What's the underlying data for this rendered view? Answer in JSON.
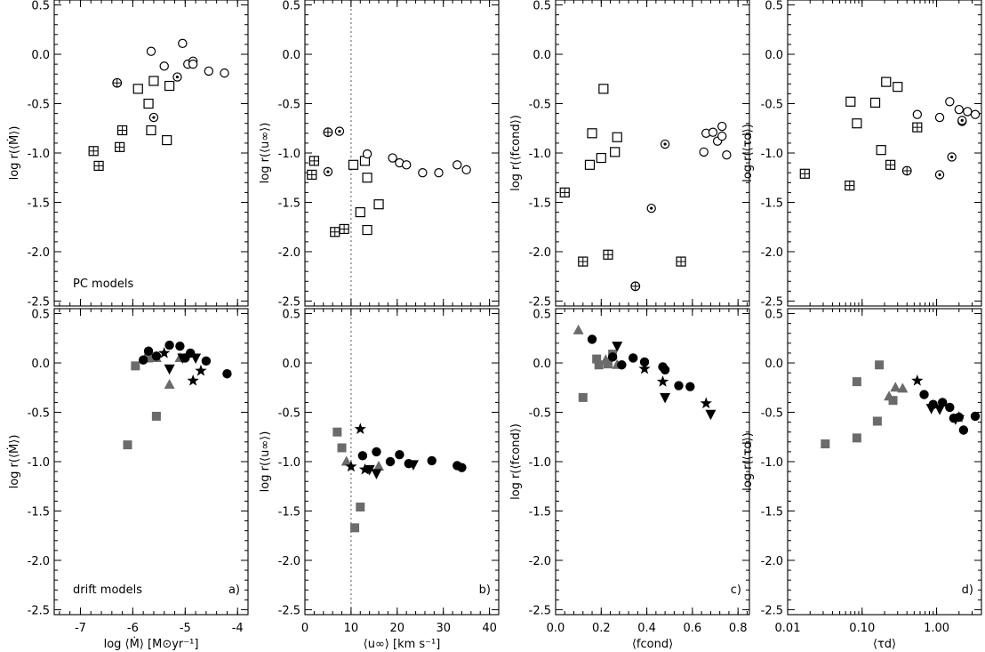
{
  "colors": {
    "black": "#000000",
    "gray": "#6b6b6b"
  },
  "columns": [
    {
      "id": "a",
      "xscale": "linear",
      "xlim": [
        -7.5,
        -3.8
      ],
      "xticks": [
        -7,
        -6,
        -5,
        -4
      ],
      "xtick_labels": [
        "-7",
        "-6",
        "-5",
        "-4"
      ],
      "xlabel": "log ⟨Ṁ⟩ [M⊙yr⁻¹]",
      "panel_label": "a)",
      "ylabel_top": "log r(⟨Ṁ⟩)",
      "ylabel_bottom": "log r(⟨Ṁ⟩)",
      "vline": null
    },
    {
      "id": "b",
      "xscale": "linear",
      "xlim": [
        0,
        42
      ],
      "xticks": [
        0,
        10,
        20,
        30,
        40
      ],
      "xtick_labels": [
        "0",
        "10",
        "20",
        "30",
        "40"
      ],
      "xlabel": "⟨u∞⟩ [km s⁻¹]",
      "panel_label": "b)",
      "ylabel_top": "log r(⟨u∞⟩)",
      "ylabel_bottom": "log r(⟨u∞⟩)",
      "vline": 10
    },
    {
      "id": "c",
      "xscale": "linear",
      "xlim": [
        0,
        0.85
      ],
      "xticks": [
        0,
        0.2,
        0.4,
        0.6,
        0.8
      ],
      "xtick_labels": [
        "0.0",
        "0.2",
        "0.4",
        "0.6",
        "0.8"
      ],
      "xlabel": "⟨fcond⟩",
      "panel_label": "c)",
      "ylabel_top": "log r(⟨fcond⟩)",
      "ylabel_bottom": "log r(⟨fcond⟩)",
      "vline": null
    },
    {
      "id": "d",
      "xscale": "log",
      "xlim": [
        0.01,
        4
      ],
      "xticks": [
        0.01,
        0.1,
        1
      ],
      "xtick_labels": [
        "0.01",
        "0.10",
        "1.00"
      ],
      "xlabel": "⟨τd⟩",
      "panel_label": "d)",
      "ylabel_top": "log r(⟨τd⟩)",
      "ylabel_bottom": "log r(⟨τd⟩)",
      "vline": null
    }
  ],
  "rows": [
    {
      "id": "top",
      "annotation": "PC models"
    },
    {
      "id": "bottom",
      "annotation": "drift models"
    }
  ],
  "ylim": [
    -2.55,
    0.55
  ],
  "yticks": [
    0.5,
    0.0,
    -0.5,
    -1.0,
    -1.5,
    -2.0,
    -2.5
  ],
  "ytick_labels": [
    "0.5",
    "0.0",
    "-0.5",
    "-1.0",
    "-1.5",
    "-2.0",
    "-2.5"
  ],
  "chart_data": [
    {
      "type": "scatter",
      "panel": "a-top",
      "series": [
        {
          "marker": "open-square",
          "points": [
            [
              -5.9,
              -0.35
            ],
            [
              -5.7,
              -0.5
            ],
            [
              -5.6,
              -0.27
            ],
            [
              -5.3,
              -0.32
            ],
            [
              -5.65,
              -0.77
            ],
            [
              -5.35,
              -0.87
            ]
          ]
        },
        {
          "marker": "square-plus",
          "points": [
            [
              -6.75,
              -0.98
            ],
            [
              -6.65,
              -1.13
            ],
            [
              -6.25,
              -0.94
            ],
            [
              -6.2,
              -0.77
            ]
          ]
        },
        {
          "marker": "open-circle",
          "points": [
            [
              -5.65,
              0.03
            ],
            [
              -5.4,
              -0.12
            ],
            [
              -5.05,
              0.11
            ],
            [
              -4.95,
              -0.1
            ],
            [
              -4.85,
              -0.07
            ],
            [
              -4.85,
              -0.1
            ],
            [
              -4.55,
              -0.17
            ],
            [
              -4.25,
              -0.19
            ]
          ]
        },
        {
          "marker": "circle-dot",
          "points": [
            [
              -5.6,
              -0.64
            ],
            [
              -5.15,
              -0.23
            ]
          ]
        },
        {
          "marker": "circle-plus",
          "points": [
            [
              -6.3,
              -0.29
            ]
          ]
        }
      ]
    },
    {
      "type": "scatter",
      "panel": "a-bottom",
      "series": [
        {
          "marker": "gray-square",
          "points": [
            [
              -6.1,
              -0.83
            ],
            [
              -5.95,
              -0.03
            ],
            [
              -5.55,
              -0.54
            ],
            [
              -5.7,
              0.05
            ]
          ]
        },
        {
          "marker": "gray-triangle",
          "points": [
            [
              -5.55,
              0.05
            ],
            [
              -5.3,
              -0.22
            ],
            [
              -5.1,
              0.05
            ]
          ]
        },
        {
          "marker": "filled-circle",
          "points": [
            [
              -5.8,
              0.03
            ],
            [
              -5.7,
              0.12
            ],
            [
              -5.55,
              0.07
            ],
            [
              -5.3,
              0.18
            ],
            [
              -5.1,
              0.17
            ],
            [
              -5.0,
              0.05
            ],
            [
              -4.9,
              0.1
            ],
            [
              -4.6,
              0.02
            ],
            [
              -4.2,
              -0.11
            ]
          ]
        },
        {
          "marker": "filled-triangle-down",
          "points": [
            [
              -5.3,
              -0.06
            ],
            [
              -5.05,
              0.05
            ],
            [
              -4.8,
              0.05
            ]
          ]
        },
        {
          "marker": "star",
          "points": [
            [
              -5.4,
              0.1
            ],
            [
              -4.85,
              -0.18
            ],
            [
              -4.7,
              -0.08
            ]
          ]
        }
      ]
    },
    {
      "type": "scatter",
      "panel": "b-top",
      "series": [
        {
          "marker": "open-square",
          "points": [
            [
              10.5,
              -1.12
            ],
            [
              12.0,
              -1.6
            ],
            [
              13.0,
              -1.08
            ],
            [
              13.5,
              -1.25
            ],
            [
              13.5,
              -1.78
            ],
            [
              16.0,
              -1.52
            ]
          ]
        },
        {
          "marker": "square-plus",
          "points": [
            [
              1.5,
              -1.22
            ],
            [
              2.0,
              -1.08
            ],
            [
              6.5,
              -1.8
            ],
            [
              8.5,
              -1.77
            ]
          ]
        },
        {
          "marker": "open-circle",
          "points": [
            [
              13.5,
              -1.01
            ],
            [
              19.0,
              -1.05
            ],
            [
              20.5,
              -1.1
            ],
            [
              22.0,
              -1.12
            ],
            [
              25.5,
              -1.2
            ],
            [
              29.0,
              -1.2
            ],
            [
              33.0,
              -1.12
            ],
            [
              35.0,
              -1.17
            ]
          ]
        },
        {
          "marker": "circle-dot",
          "points": [
            [
              5.0,
              -1.19
            ],
            [
              7.5,
              -0.78
            ]
          ]
        },
        {
          "marker": "circle-plus",
          "points": [
            [
              5.0,
              -0.79
            ]
          ]
        }
      ]
    },
    {
      "type": "scatter",
      "panel": "b-bottom",
      "series": [
        {
          "marker": "gray-square",
          "points": [
            [
              7.0,
              -0.7
            ],
            [
              8.0,
              -0.86
            ],
            [
              10.8,
              -1.67
            ],
            [
              12.0,
              -1.46
            ]
          ]
        },
        {
          "marker": "gray-triangle",
          "points": [
            [
              9.0,
              -1.0
            ],
            [
              16.0,
              -1.05
            ]
          ]
        },
        {
          "marker": "filled-circle",
          "points": [
            [
              12.5,
              -0.94
            ],
            [
              15.5,
              -0.9
            ],
            [
              18.5,
              -1.0
            ],
            [
              20.5,
              -0.93
            ],
            [
              22.5,
              -1.02
            ],
            [
              27.5,
              -0.99
            ],
            [
              33.0,
              -1.04
            ],
            [
              34.0,
              -1.06
            ]
          ]
        },
        {
          "marker": "filled-triangle-down",
          "points": [
            [
              14.0,
              -1.08
            ],
            [
              15.5,
              -1.12
            ],
            [
              23.5,
              -1.03
            ]
          ]
        },
        {
          "marker": "star",
          "points": [
            [
              10.0,
              -1.05
            ],
            [
              12.0,
              -0.67
            ],
            [
              13.0,
              -1.08
            ]
          ]
        }
      ]
    },
    {
      "type": "scatter",
      "panel": "c-top",
      "series": [
        {
          "marker": "open-square",
          "points": [
            [
              0.15,
              -1.12
            ],
            [
              0.16,
              -0.8
            ],
            [
              0.2,
              -1.05
            ],
            [
              0.21,
              -0.35
            ],
            [
              0.26,
              -0.99
            ],
            [
              0.27,
              -0.84
            ]
          ]
        },
        {
          "marker": "square-plus",
          "points": [
            [
              0.04,
              -1.4
            ],
            [
              0.12,
              -2.1
            ],
            [
              0.23,
              -2.03
            ],
            [
              0.55,
              -2.1
            ]
          ]
        },
        {
          "marker": "open-circle",
          "points": [
            [
              0.65,
              -0.99
            ],
            [
              0.66,
              -0.8
            ],
            [
              0.69,
              -0.79
            ],
            [
              0.71,
              -0.88
            ],
            [
              0.73,
              -0.83
            ],
            [
              0.73,
              -0.73
            ],
            [
              0.75,
              -1.02
            ]
          ]
        },
        {
          "marker": "circle-dot",
          "points": [
            [
              0.42,
              -1.56
            ],
            [
              0.48,
              -0.91
            ]
          ]
        },
        {
          "marker": "circle-plus",
          "points": [
            [
              0.35,
              -2.35
            ]
          ]
        }
      ]
    },
    {
      "type": "scatter",
      "panel": "c-bottom",
      "series": [
        {
          "marker": "gray-square",
          "points": [
            [
              0.12,
              -0.35
            ],
            [
              0.18,
              0.04
            ],
            [
              0.19,
              -0.02
            ],
            [
              0.23,
              -0.01
            ],
            [
              0.25,
              0.09
            ]
          ]
        },
        {
          "marker": "gray-triangle",
          "points": [
            [
              0.1,
              0.33
            ],
            [
              0.22,
              0.03
            ],
            [
              0.27,
              -0.02
            ]
          ]
        },
        {
          "marker": "filled-circle",
          "points": [
            [
              0.16,
              0.24
            ],
            [
              0.25,
              0.06
            ],
            [
              0.29,
              -0.02
            ],
            [
              0.34,
              0.05
            ],
            [
              0.39,
              0.01
            ],
            [
              0.47,
              -0.04
            ],
            [
              0.48,
              -0.07
            ],
            [
              0.54,
              -0.23
            ],
            [
              0.59,
              -0.24
            ]
          ]
        },
        {
          "marker": "filled-triangle-down",
          "points": [
            [
              0.27,
              0.17
            ],
            [
              0.48,
              -0.35
            ],
            [
              0.68,
              -0.52
            ]
          ]
        },
        {
          "marker": "star",
          "points": [
            [
              0.39,
              -0.06
            ],
            [
              0.47,
              -0.19
            ],
            [
              0.66,
              -0.41
            ]
          ]
        }
      ]
    },
    {
      "type": "scatter",
      "panel": "d-top",
      "series": [
        {
          "marker": "open-square",
          "points": [
            [
              0.07,
              -0.48
            ],
            [
              0.085,
              -0.7
            ],
            [
              0.15,
              -0.49
            ],
            [
              0.18,
              -0.97
            ],
            [
              0.21,
              -0.28
            ],
            [
              0.3,
              -0.33
            ]
          ]
        },
        {
          "marker": "square-plus",
          "points": [
            [
              0.017,
              -1.21
            ],
            [
              0.068,
              -1.33
            ],
            [
              0.24,
              -1.12
            ],
            [
              0.55,
              -0.74
            ]
          ]
        },
        {
          "marker": "open-circle",
          "points": [
            [
              0.55,
              -0.61
            ],
            [
              1.1,
              -0.64
            ],
            [
              1.5,
              -0.48
            ],
            [
              2.0,
              -0.56
            ],
            [
              2.2,
              -0.68
            ],
            [
              2.6,
              -0.58
            ],
            [
              3.3,
              -0.61
            ]
          ]
        },
        {
          "marker": "circle-dot",
          "points": [
            [
              1.1,
              -1.22
            ],
            [
              1.6,
              -1.04
            ],
            [
              2.2,
              -0.67
            ]
          ]
        },
        {
          "marker": "circle-plus",
          "points": [
            [
              0.4,
              -1.18
            ]
          ]
        }
      ]
    },
    {
      "type": "scatter",
      "panel": "d-bottom",
      "series": [
        {
          "marker": "gray-square",
          "points": [
            [
              0.032,
              -0.82
            ],
            [
              0.085,
              -0.76
            ],
            [
              0.085,
              -0.19
            ],
            [
              0.16,
              -0.59
            ],
            [
              0.17,
              -0.02
            ],
            [
              0.26,
              -0.38
            ]
          ]
        },
        {
          "marker": "gray-triangle",
          "points": [
            [
              0.23,
              -0.34
            ],
            [
              0.28,
              -0.25
            ],
            [
              0.35,
              -0.26
            ]
          ]
        },
        {
          "marker": "filled-circle",
          "points": [
            [
              0.68,
              -0.32
            ],
            [
              0.9,
              -0.42
            ],
            [
              1.2,
              -0.4
            ],
            [
              1.5,
              -0.45
            ],
            [
              1.7,
              -0.56
            ],
            [
              2.0,
              -0.55
            ],
            [
              2.3,
              -0.68
            ],
            [
              3.3,
              -0.54
            ]
          ]
        },
        {
          "marker": "filled-triangle-down",
          "points": [
            [
              0.85,
              -0.46
            ],
            [
              1.1,
              -0.47
            ],
            [
              1.8,
              -0.57
            ]
          ]
        },
        {
          "marker": "star",
          "points": [
            [
              0.55,
              -0.18
            ],
            [
              2.0,
              -0.55
            ]
          ]
        }
      ]
    }
  ]
}
